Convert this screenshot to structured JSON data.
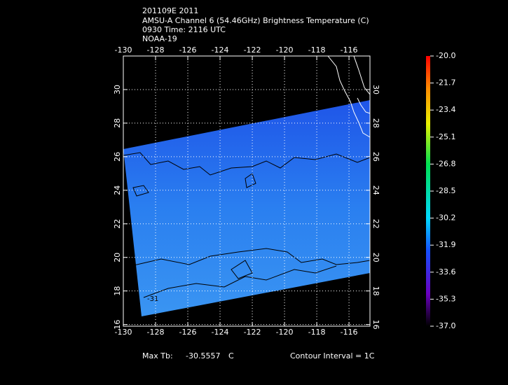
{
  "header": {
    "lines": [
      "201109E 2011",
      "AMSU-A Channel 6 (54.46GHz) Brightness Temperature (C)",
      "0930 Time: 2116 UTC",
      "NOAA-19"
    ]
  },
  "map": {
    "lon_range": [
      -130,
      -114.7
    ],
    "lat_range": [
      15.9,
      32.0
    ],
    "lon_ticks": [
      -130,
      -128,
      -126,
      -124,
      -122,
      -120,
      -118,
      -116
    ],
    "lat_ticks": [
      16,
      18,
      20,
      22,
      24,
      26,
      28,
      30
    ],
    "contour_label": "-31"
  },
  "colorbar": {
    "range": [
      -37,
      -20
    ],
    "ticks": [
      {
        "value": -20,
        "label": "-20.0"
      },
      -21.7,
      -23.4,
      -25.1,
      -26.8,
      -28.5,
      -30.2,
      -31.9,
      -33.6,
      -35.3,
      {
        "value": -37,
        "label": "-37.0"
      }
    ]
  },
  "footer": {
    "max_label": "Max Tb:",
    "max_value": -30.5557,
    "max_unit": "C",
    "contour_interval": "Contour Interval = 1C"
  }
}
